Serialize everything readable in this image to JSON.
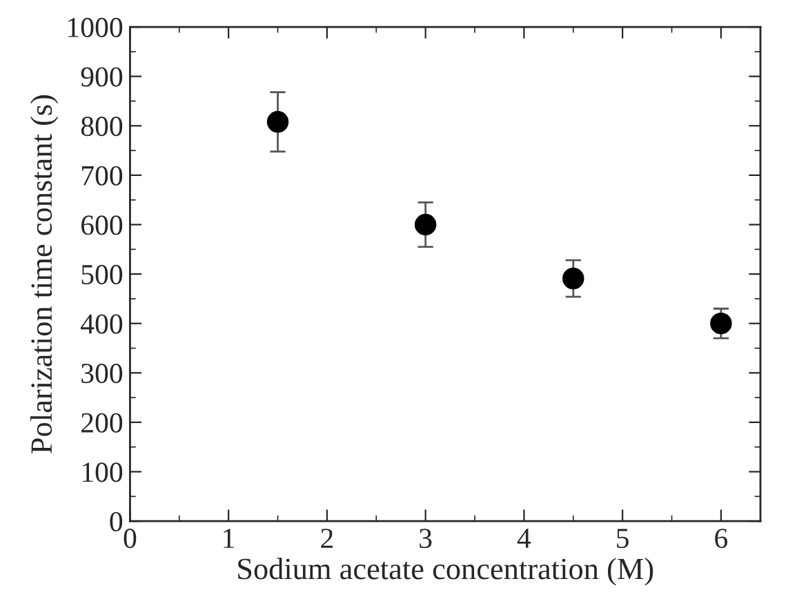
{
  "chart_data": {
    "type": "scatter",
    "xlabel": "Sodium acetate concentration (M)",
    "ylabel": "Polarization time constant (s)",
    "x": [
      1.5,
      3,
      4.5,
      6
    ],
    "series": [
      {
        "color": "#000000",
        "values": [
          808,
          600,
          491,
          400
        ],
        "errors": [
          60,
          45,
          37,
          30
        ]
      }
    ],
    "marker": "circle",
    "xlim": [
      0,
      6.4
    ],
    "xticks": [
      0,
      1,
      2,
      3,
      4,
      5,
      6
    ],
    "ylim": [
      0,
      1000
    ],
    "yticks": [
      0,
      100,
      200,
      300,
      400,
      500,
      600,
      700,
      800,
      900,
      1000
    ]
  }
}
